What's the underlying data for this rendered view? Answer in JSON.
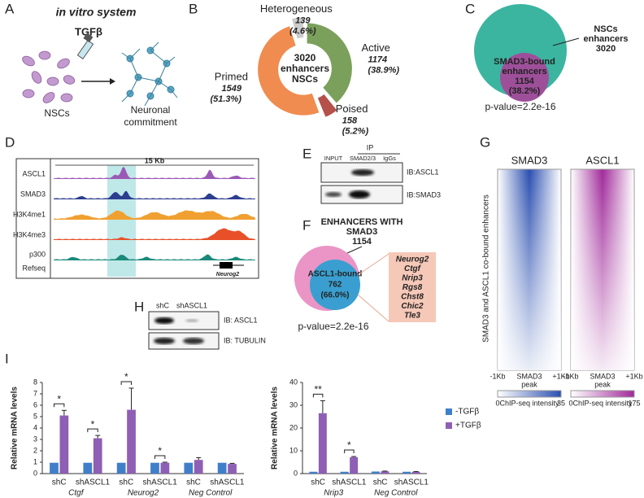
{
  "panel_labels": [
    "A",
    "B",
    "C",
    "D",
    "E",
    "F",
    "G",
    "H",
    "I"
  ],
  "panel_a": {
    "title": "in vitro system",
    "treatment": "TGFβ",
    "start": "NSCs",
    "end": [
      "Neuronal",
      "commitment"
    ]
  },
  "panel_c": {
    "outer_label": [
      "NSCs",
      "enhancers",
      "3020"
    ],
    "inner_label": [
      "SMAD3-bound",
      "enhancers",
      "1154",
      "(38.2%)"
    ],
    "p_value": "p-value=2.2e-16"
  },
  "panel_d": {
    "scale": "15 Kb",
    "tracks": [
      "ASCL1",
      "SMAD3",
      "H3K4me1",
      "H3K4me3",
      "p300",
      "Refseq"
    ],
    "gene": "Neurog2"
  },
  "panel_e": {
    "ip": "IP",
    "lanes": [
      "INPUT",
      "SMAD2/3",
      "IgGs"
    ],
    "blots": [
      "IB:ASCL1",
      "IB:SMAD3"
    ]
  },
  "panel_f": {
    "title": [
      "ENHANCERS WITH",
      "SMAD3",
      "1154"
    ],
    "inner_label": [
      "ASCL1-bound",
      "762",
      "(66.0%)"
    ],
    "genes": [
      "Neurog2",
      "Ctgf",
      "Nrip3",
      "Rgs8",
      "Chst8",
      "Chic2",
      "Tle3"
    ],
    "p_value": "p-value=2.2e-16"
  },
  "panel_g": {
    "y_label": "SMAD3 and ASCL1 co-bound enhancers",
    "heatmaps": [
      {
        "title": "SMAD3",
        "x_labels": [
          "-1Kb",
          "SMAD3",
          "peak",
          "+1Kb"
        ],
        "colorbar": [
          0,
          "ChIP-seq intensity",
          35
        ]
      },
      {
        "title": "ASCL1",
        "x_labels": [
          "-1Kb",
          "SMAD3",
          "peak",
          "+1Kb"
        ],
        "colorbar": [
          0,
          "ChIP-seq intensity",
          175
        ]
      }
    ]
  },
  "panel_h": {
    "lanes": [
      "shC",
      "shASCL1"
    ],
    "blots": [
      "IB: ASCL1",
      "IB: TUBULIN"
    ]
  },
  "chart_data": [
    {
      "type": "pie",
      "categories": [
        "Active",
        "Poised",
        "Primed",
        "Heterogeneous"
      ],
      "values": [
        1174,
        158,
        1549,
        139
      ],
      "percent_labels": [
        "(38.9%)",
        "(5.2%)",
        "(51.3%)",
        "(4.6%)"
      ],
      "colors": [
        "#7ba05b",
        "#b5504a",
        "#f08c4f",
        "#cccccc"
      ],
      "center_labels": [
        "3020",
        "enhancers",
        "NSCs"
      ]
    },
    {
      "type": "bar",
      "y_label": "Relative mRNA levels",
      "categories": [
        "shC",
        "shASCL1",
        "shC",
        "shASCL1",
        "shC",
        "shASCL1"
      ],
      "group_labels": [
        "Ctgf",
        "Neurog2",
        "Neg Control"
      ],
      "ylim": [
        0,
        8
      ],
      "yticks": [
        0,
        1,
        2,
        3,
        4,
        5,
        6,
        7,
        8
      ],
      "series": [
        {
          "color": "#3f7fca",
          "values": [
            0.95,
            0.95,
            0.95,
            0.95,
            0.95,
            0.95
          ]
        },
        {
          "color": "#8e5fb4",
          "values": [
            5.1,
            3.1,
            5.6,
            0.95,
            1.2,
            0.85
          ],
          "errors": [
            0.45,
            0.25,
            1.9,
            0.05,
            0.2,
            0.05
          ]
        }
      ],
      "significance": [
        "*",
        "*",
        "*",
        "*",
        null,
        null
      ]
    },
    {
      "type": "bar",
      "y_label": "Relative mRNA levels",
      "categories": [
        "shC",
        "shASCL1",
        "shC",
        "shASCL1"
      ],
      "group_labels": [
        "Nrip3",
        "Neg Control"
      ],
      "ylim": [
        0,
        40
      ],
      "yticks": [
        0,
        10,
        20,
        30,
        40
      ],
      "series": [
        {
          "name": "-TGFβ",
          "color": "#3f7fca",
          "values": [
            0.8,
            0.8,
            0.9,
            0.8
          ]
        },
        {
          "name": "+TGFβ",
          "color": "#8e5fb4",
          "values": [
            26.5,
            7.2,
            1.0,
            0.8
          ],
          "errors": [
            5.5,
            0.3,
            0.1,
            0.1
          ]
        }
      ],
      "significance": [
        "**",
        "*",
        null,
        null
      ]
    }
  ]
}
